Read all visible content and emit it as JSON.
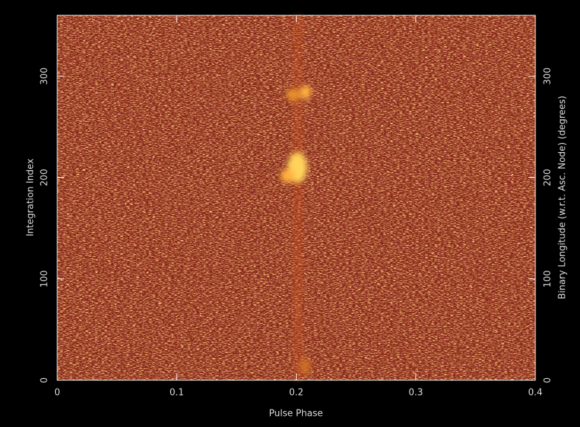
{
  "chart_data": {
    "type": "heatmap",
    "xlabel": "Pulse Phase",
    "ylabel": "Integration Index",
    "y2label": "Binary Longitude (w.r.t. Asc. Node) (degrees)",
    "xlim": [
      0,
      0.4
    ],
    "xticks": [
      0,
      0.1,
      0.2,
      0.3,
      0.4
    ],
    "ylim": [
      0,
      360
    ],
    "yticks": [
      0,
      100,
      200,
      300
    ],
    "y2lim": [
      0,
      360
    ],
    "y2ticks": [
      0,
      100,
      200,
      300
    ]
  }
}
